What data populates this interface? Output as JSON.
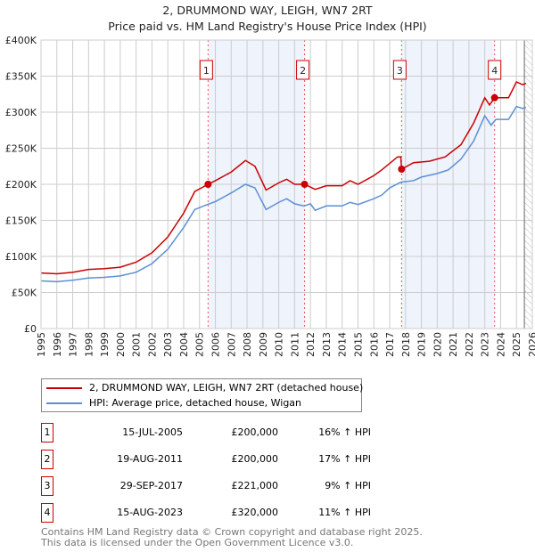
{
  "chart_data": {
    "type": "line",
    "title": "2, DRUMMOND WAY, LEIGH, WN7 2RT",
    "subtitle": "Price paid vs. HM Land Registry's House Price Index (HPI)",
    "xlim": [
      1995,
      2026
    ],
    "ylim": [
      0,
      400000
    ],
    "x_ticks": [
      "1995",
      "1996",
      "1997",
      "1998",
      "1999",
      "2000",
      "2001",
      "2002",
      "2003",
      "2004",
      "2005",
      "2006",
      "2007",
      "2008",
      "2009",
      "2010",
      "2011",
      "2012",
      "2013",
      "2014",
      "2015",
      "2016",
      "2017",
      "2018",
      "2019",
      "2020",
      "2021",
      "2022",
      "2023",
      "2024",
      "2025",
      "2026"
    ],
    "y_ticks": [
      {
        "v": 0,
        "label": "£0"
      },
      {
        "v": 50000,
        "label": "£50K"
      },
      {
        "v": 100000,
        "label": "£100K"
      },
      {
        "v": 150000,
        "label": "£150K"
      },
      {
        "v": 200000,
        "label": "£200K"
      },
      {
        "v": 250000,
        "label": "£250K"
      },
      {
        "v": 300000,
        "label": "£300K"
      },
      {
        "v": 350000,
        "label": "£350K"
      },
      {
        "v": 400000,
        "label": "£400K"
      }
    ],
    "grid": true,
    "shaded_ranges": [
      [
        2005.54,
        2011.63
      ],
      [
        2017.75,
        2023.62
      ]
    ],
    "forecast_from": 2025.5,
    "colors": {
      "property": "#cc0000",
      "hpi": "#5b8fd4",
      "shade": "#eef3fc"
    },
    "series": [
      {
        "name": "2, DRUMMOND WAY, LEIGH, WN7 2RT (detached house)",
        "key": "property",
        "points": [
          [
            1995,
            77000
          ],
          [
            1996,
            76000
          ],
          [
            1997,
            78000
          ],
          [
            1998,
            82000
          ],
          [
            1999,
            83000
          ],
          [
            2000,
            85000
          ],
          [
            2001,
            92000
          ],
          [
            2002,
            105000
          ],
          [
            2003,
            127000
          ],
          [
            2004,
            160000
          ],
          [
            2004.7,
            190000
          ],
          [
            2005.54,
            200000
          ],
          [
            2006,
            205000
          ],
          [
            2007,
            217000
          ],
          [
            2007.9,
            233000
          ],
          [
            2008.5,
            225000
          ],
          [
            2009.2,
            192000
          ],
          [
            2010,
            202000
          ],
          [
            2010.5,
            207000
          ],
          [
            2011,
            200000
          ],
          [
            2011.63,
            200000
          ],
          [
            2012.3,
            193000
          ],
          [
            2013,
            198000
          ],
          [
            2014,
            198000
          ],
          [
            2014.5,
            205000
          ],
          [
            2015,
            200000
          ],
          [
            2016,
            212000
          ],
          [
            2016.5,
            220000
          ],
          [
            2017.5,
            238000
          ],
          [
            2017.7,
            238000
          ],
          [
            2017.75,
            221000
          ],
          [
            2018.5,
            230000
          ],
          [
            2019.5,
            232000
          ],
          [
            2020.5,
            238000
          ],
          [
            2021.5,
            255000
          ],
          [
            2022.3,
            285000
          ],
          [
            2023,
            320000
          ],
          [
            2023.3,
            310000
          ],
          [
            2023.62,
            320000
          ],
          [
            2024.5,
            320000
          ],
          [
            2025,
            342000
          ],
          [
            2025.4,
            338000
          ],
          [
            2025.6,
            340000
          ]
        ]
      },
      {
        "name": "HPI: Average price, detached house, Wigan",
        "key": "hpi",
        "points": [
          [
            1995,
            66000
          ],
          [
            1996,
            65000
          ],
          [
            1997,
            67000
          ],
          [
            1998,
            70000
          ],
          [
            1999,
            71000
          ],
          [
            2000,
            73000
          ],
          [
            2001,
            78000
          ],
          [
            2002,
            90000
          ],
          [
            2003,
            110000
          ],
          [
            2004,
            140000
          ],
          [
            2004.7,
            165000
          ],
          [
            2005.5,
            172000
          ],
          [
            2006,
            176000
          ],
          [
            2007,
            188000
          ],
          [
            2007.9,
            200000
          ],
          [
            2008.5,
            195000
          ],
          [
            2009.2,
            165000
          ],
          [
            2010,
            175000
          ],
          [
            2010.5,
            180000
          ],
          [
            2011,
            173000
          ],
          [
            2011.6,
            170000
          ],
          [
            2012,
            173000
          ],
          [
            2012.3,
            164000
          ],
          [
            2013,
            170000
          ],
          [
            2014,
            170000
          ],
          [
            2014.5,
            175000
          ],
          [
            2015,
            172000
          ],
          [
            2016,
            180000
          ],
          [
            2016.5,
            185000
          ],
          [
            2017,
            195000
          ],
          [
            2017.7,
            203000
          ],
          [
            2018.5,
            205000
          ],
          [
            2019,
            210000
          ],
          [
            2020,
            215000
          ],
          [
            2020.7,
            220000
          ],
          [
            2021.5,
            235000
          ],
          [
            2022.3,
            260000
          ],
          [
            2023,
            295000
          ],
          [
            2023.4,
            282000
          ],
          [
            2023.7,
            290000
          ],
          [
            2024.5,
            290000
          ],
          [
            2025,
            308000
          ],
          [
            2025.4,
            305000
          ],
          [
            2025.6,
            307000
          ]
        ]
      }
    ],
    "sales": [
      {
        "n": "1",
        "x": 2005.54,
        "y": 200000,
        "date": "15-JUL-2005",
        "price": "£200,000",
        "hpi": "16% ↑ HPI"
      },
      {
        "n": "2",
        "x": 2011.63,
        "y": 200000,
        "date": "19-AUG-2011",
        "price": "£200,000",
        "hpi": "17% ↑ HPI"
      },
      {
        "n": "3",
        "x": 2017.75,
        "y": 221000,
        "date": "29-SEP-2017",
        "price": "£221,000",
        "hpi": "9% ↑ HPI"
      },
      {
        "n": "4",
        "x": 2023.62,
        "y": 320000,
        "date": "15-AUG-2023",
        "price": "£320,000",
        "hpi": "11% ↑ HPI"
      }
    ]
  },
  "legend": {
    "property": "2, DRUMMOND WAY, LEIGH, WN7 2RT (detached house)",
    "hpi": "HPI: Average price, detached house, Wigan"
  },
  "footer": {
    "line1": "Contains HM Land Registry data © Crown copyright and database right 2025.",
    "line2": "This data is licensed under the Open Government Licence v3.0."
  }
}
